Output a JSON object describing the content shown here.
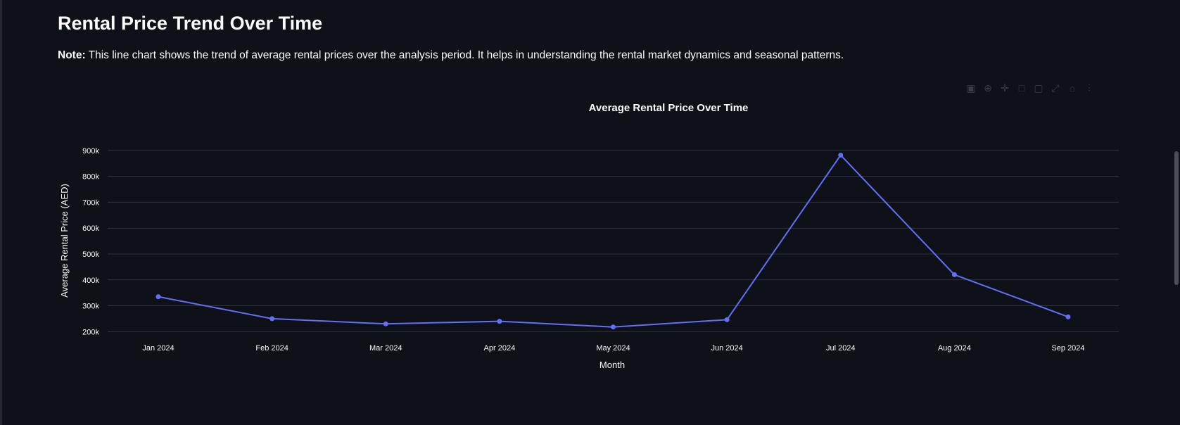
{
  "page": {
    "title": "Rental Price Trend Over Time",
    "note_label": "Note:",
    "note_text": " This line chart shows the trend of average rental prices over the analysis period. It helps in understanding the rental market dynamics and seasonal patterns."
  },
  "modebar": {
    "icons": [
      "camera-icon",
      "zoom-icon",
      "pan-icon",
      "box-select-icon",
      "lasso-icon",
      "autoscale-icon",
      "home-icon",
      "spike-icon"
    ]
  },
  "colors": {
    "line": "#636efa",
    "grid": "#31333f",
    "background": "#0e1117"
  },
  "chart_data": {
    "type": "line",
    "title": "Average Rental Price Over Time",
    "xlabel": "Month",
    "ylabel": "Average Rental Price (AED)",
    "categories": [
      "Jan 2024",
      "Feb 2024",
      "Mar 2024",
      "Apr 2024",
      "May 2024",
      "Jun 2024",
      "Jul 2024",
      "Aug 2024",
      "Sep 2024"
    ],
    "values": [
      335000,
      250000,
      230000,
      240000,
      218000,
      246000,
      882000,
      420000,
      257000
    ],
    "ylim": [
      190000,
      905000
    ],
    "yticks": [
      200000,
      300000,
      400000,
      500000,
      600000,
      700000,
      800000,
      900000
    ],
    "ytick_labels": [
      "200k",
      "300k",
      "400k",
      "500k",
      "600k",
      "700k",
      "800k",
      "900k"
    ],
    "grid": true,
    "markers": true
  }
}
